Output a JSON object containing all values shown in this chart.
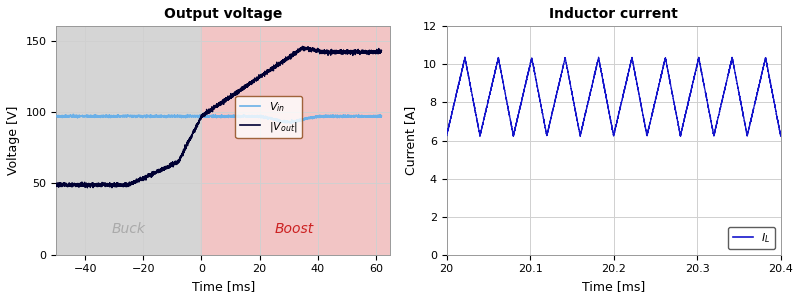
{
  "left_title": "Output voltage",
  "right_title": "Inductor current",
  "left_xlabel": "Time [ms]",
  "left_ylabel": "Voltage [V]",
  "right_xlabel": "Time [ms]",
  "right_ylabel": "Current [A]",
  "left_xlim": [
    -50,
    65
  ],
  "left_ylim": [
    0,
    160
  ],
  "left_xticks": [
    -40,
    -20,
    0,
    20,
    40,
    60
  ],
  "left_yticks": [
    0,
    50,
    100,
    150
  ],
  "right_xlim": [
    20.0,
    20.4
  ],
  "right_ylim": [
    0,
    12
  ],
  "right_xticks": [
    20.0,
    20.1,
    20.2,
    20.3,
    20.4
  ],
  "right_ytick_labels": [
    "0",
    "2",
    "4",
    "6",
    "8",
    "10",
    "12"
  ],
  "right_yticks": [
    0,
    2,
    4,
    6,
    8,
    10,
    12
  ],
  "buck_region_color": "#d5d5d5",
  "boost_region_color": "#f2c5c5",
  "buck_label_color": "#aaaaaa",
  "boost_label_color": "#cc2222",
  "vin_color": "#6ab0e8",
  "vout_color": "#000033",
  "il_color": "#1515cc",
  "background_color": "#ffffff",
  "grid_color": "#d0d0d0",
  "legend_edge_left": "#8B4513",
  "legend_edge_right": "#333333"
}
